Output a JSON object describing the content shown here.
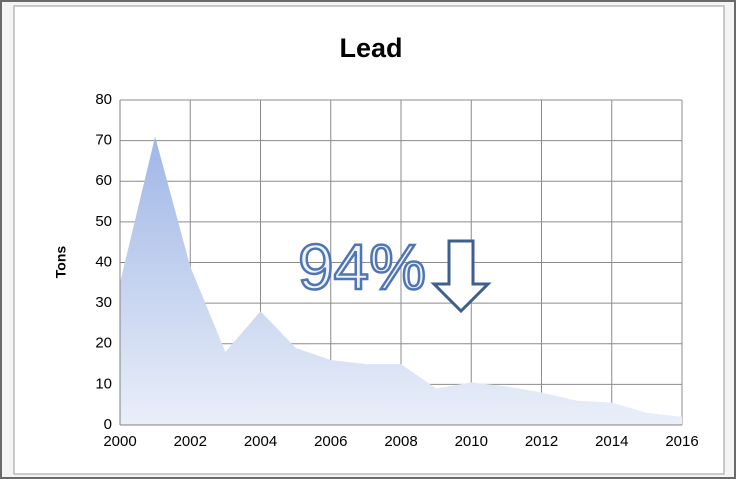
{
  "chart_data": {
    "type": "area",
    "title": "Lead",
    "ylabel": "Tons",
    "annotation": "94%",
    "x": [
      2000,
      2001,
      2002,
      2003,
      2004,
      2005,
      2006,
      2007,
      2008,
      2009,
      2010,
      2011,
      2012,
      2013,
      2014,
      2015,
      2016
    ],
    "values": [
      35,
      71,
      39,
      18,
      28,
      19,
      16,
      15,
      15,
      9,
      10.5,
      9.5,
      8,
      6,
      5.5,
      3,
      2
    ],
    "color": "#a9bde8",
    "xlim": [
      2000,
      2016
    ],
    "xticks": [
      2000,
      2002,
      2004,
      2006,
      2008,
      2010,
      2012,
      2014,
      2016
    ],
    "ylim": [
      0,
      80
    ],
    "yticks": [
      0,
      10,
      20,
      30,
      40,
      50,
      60,
      70,
      80
    ],
    "grid": true
  }
}
